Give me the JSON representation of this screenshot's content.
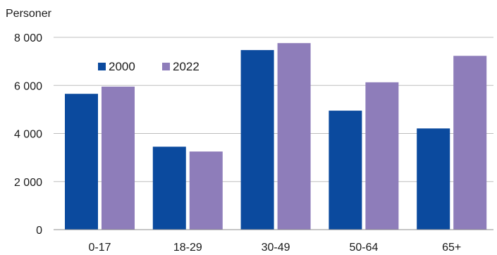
{
  "chart_data": {
    "type": "bar",
    "ylabel": "Personer",
    "categories": [
      "0-17",
      "18-29",
      "30-49",
      "50-64",
      "65+"
    ],
    "series": [
      {
        "name": "2000",
        "values": [
          5650,
          3450,
          7470,
          4950,
          4210
        ],
        "color": "#0b4a9e"
      },
      {
        "name": "2022",
        "values": [
          5950,
          3250,
          7760,
          6130,
          7230
        ],
        "color": "#8e7dba"
      }
    ],
    "ylim": [
      0,
      8000
    ],
    "yticks": [
      0,
      2000,
      4000,
      6000,
      8000
    ],
    "ytick_labels": [
      "0",
      "2 000",
      "4 000",
      "6 000",
      "8 000"
    ],
    "grid": true,
    "legend_position": "top-left inside"
  }
}
